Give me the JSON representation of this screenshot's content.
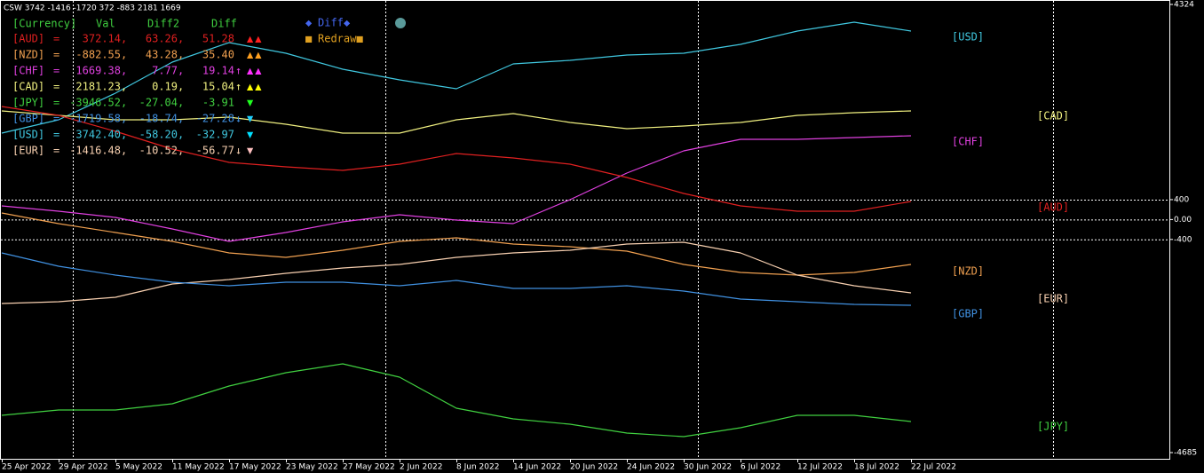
{
  "title": "CSW 3742 -1416 -1720 372 -883 2181 1669",
  "panel": {
    "header": {
      "text": [
        "[Currency]",
        "Val",
        "Diff2",
        "Diff"
      ],
      "color": "#40d040"
    },
    "rows": [
      {
        "label": "[AUD]",
        "val": "372.14",
        "diff2": "63.26",
        "diff": "51.28",
        "signal": "▲▲",
        "color": "#e02020",
        "signal_color": "#ff2020"
      },
      {
        "label": "[NZD]",
        "val": "-882.55",
        "diff2": "43.28",
        "diff": "35.40",
        "signal": "▲▲",
        "color": "#f0a050",
        "signal_color": "#ffa020"
      },
      {
        "label": "[CHF]",
        "val": "1669.38",
        "diff2": "7.77",
        "diff": "19.14",
        "arrow": "↑",
        "signal": "▲▲",
        "color": "#e040e0",
        "signal_color": "#ff30ff"
      },
      {
        "label": "[CAD]",
        "val": "2181.23",
        "diff2": "0.19",
        "diff": "15.04",
        "arrow": "↑",
        "signal": "▲▲",
        "color": "#f0f080",
        "signal_color": "#ffff00"
      },
      {
        "label": "[JPY]",
        "val": "-3946.52",
        "diff2": "-27.04",
        "diff": "-3.91",
        "signal": "▼",
        "color": "#40d040",
        "signal_color": "#20ff20"
      },
      {
        "label": "[GBP]",
        "val": "-1719.58",
        "diff2": "-18.74",
        "diff": "-27.28",
        "arrow": "↓",
        "signal": "▼",
        "color": "#4090e0",
        "signal_color": "#20d0ff"
      },
      {
        "label": "[USD]",
        "val": "3742.40",
        "diff2": "-58.20",
        "diff": "-32.97",
        "signal": "▼",
        "color": "#40c8e0",
        "signal_color": "#00e0ff"
      },
      {
        "label": "[EUR]",
        "val": "-1416.48",
        "diff2": "-10.52",
        "diff": "-56.77",
        "arrow": "↓",
        "signal": "▼",
        "color": "#f8d0b0",
        "signal_color": "#ffc0c0"
      }
    ]
  },
  "buttons": [
    {
      "label": "Diff",
      "icon": "◆",
      "color": "#4466ee"
    },
    {
      "label": "Redraw",
      "icon": "■",
      "color": "#e0a020"
    }
  ],
  "chart_data": {
    "type": "line",
    "categories": [
      "25 Apr 2022",
      "29 Apr 2022",
      "5 May 2022",
      "11 May 2022",
      "17 May 2022",
      "23 May 2022",
      "27 May 2022",
      "2 Jun 2022",
      "8 Jun 2022",
      "14 Jun 2022",
      "20 Jun 2022",
      "24 Jun 2022",
      "30 Jun 2022",
      "6 Jul 2022",
      "12 Jul 2022",
      "18 Jul 2022",
      "22 Jul 2022"
    ],
    "ylim": [
      -4685,
      4324
    ],
    "yticks": [
      -4685,
      -400,
      {
        "value": 0,
        "label": "0.00"
      },
      400,
      4324
    ],
    "grid": true,
    "series": [
      {
        "name": "[USD]",
        "color": "#40c8e0",
        "values": [
          1737,
          2005,
          2540,
          3164,
          3557,
          3343,
          3022,
          2808,
          2629,
          3129,
          3200,
          3307,
          3343,
          3521,
          3789,
          3967,
          3789
        ]
      },
      {
        "name": "[CAD]",
        "color": "#f0f080",
        "values": [
          2183,
          2094,
          2005,
          2005,
          2058,
          1916,
          1737,
          1737,
          2005,
          2130,
          1951,
          1826,
          1880,
          1951,
          2094,
          2148,
          2183
        ]
      },
      {
        "name": "[CHF]",
        "color": "#e040e0",
        "values": [
          274,
          167,
          42,
          -190,
          -439,
          -261,
          -47,
          96,
          -11,
          -82,
          399,
          934,
          1380,
          1612,
          1612,
          1648,
          1684
        ]
      },
      {
        "name": "[AUD]",
        "color": "#e02020",
        "values": [
          2272,
          2094,
          1773,
          1416,
          1148,
          1059,
          988,
          1113,
          1327,
          1238,
          1113,
          845,
          524,
          274,
          167,
          167,
          364
        ]
      },
      {
        "name": "[NZD]",
        "color": "#f0a050",
        "values": [
          132,
          -82,
          -261,
          -439,
          -671,
          -760,
          -618,
          -439,
          -368,
          -493,
          -546,
          -636,
          -903,
          -1064,
          -1117,
          -1064,
          -903
        ]
      },
      {
        "name": "[EUR]",
        "color": "#f8d0b0",
        "values": [
          -1688,
          -1652,
          -1563,
          -1296,
          -1206,
          -1082,
          -974,
          -903,
          -760,
          -671,
          -618,
          -493,
          -457,
          -671,
          -1117,
          -1331,
          -1474
        ]
      },
      {
        "name": "[GBP]",
        "color": "#4090e0",
        "values": [
          -671,
          -939,
          -1117,
          -1260,
          -1331,
          -1260,
          -1260,
          -1331,
          -1224,
          -1385,
          -1385,
          -1331,
          -1438,
          -1599,
          -1652,
          -1706,
          -1724
        ]
      },
      {
        "name": "[JPY]",
        "color": "#40d040",
        "values": [
          -3936,
          -3829,
          -3829,
          -3704,
          -3347,
          -3080,
          -2901,
          -3169,
          -3793,
          -4007,
          -4114,
          -4293,
          -4364,
          -4186,
          -3936,
          -3936,
          -4061
        ]
      }
    ]
  }
}
